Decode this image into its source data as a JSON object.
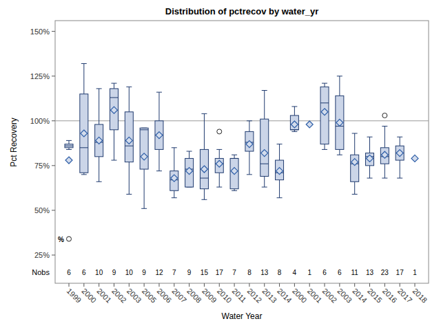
{
  "chart_data": {
    "type": "box",
    "title": "Distribution of pctrecov by water_yr",
    "x_label": "Water Year",
    "y_label": "Pct Recovery",
    "categories": [
      "1999",
      "2000",
      "2001",
      "2002",
      "2003",
      "2005",
      "2006",
      "2007",
      "2008",
      "2009",
      "2010",
      "2011",
      "2012",
      "2013",
      "2014",
      "2000",
      "2001",
      "2002",
      "2003",
      "2014",
      "2015",
      "2016",
      "2017",
      "2018"
    ],
    "whisker_low": [
      84,
      70,
      66,
      78,
      59,
      51,
      72,
      57,
      63,
      56,
      63,
      61,
      70,
      63,
      57,
      94,
      null,
      84,
      81,
      59,
      68,
      68,
      68,
      null
    ],
    "q1": [
      85,
      71,
      80,
      95,
      77,
      73,
      84,
      61,
      63,
      62,
      71,
      62,
      83,
      69,
      67,
      95,
      null,
      87,
      84,
      66,
      75,
      76,
      78,
      null
    ],
    "median": [
      86,
      85,
      88,
      113,
      86,
      95,
      92,
      67,
      73,
      68,
      76,
      79,
      88,
      76,
      71,
      95,
      null,
      110,
      97,
      76,
      80,
      80,
      82,
      null
    ],
    "q3": [
      87,
      115,
      98,
      118,
      105,
      96,
      100,
      72,
      79,
      84,
      79,
      79,
      94,
      101,
      78,
      103,
      null,
      119,
      114,
      81,
      82,
      85,
      86,
      null
    ],
    "whisker_high": [
      89,
      132,
      118,
      121,
      119,
      96,
      116,
      85,
      83,
      104,
      84,
      81,
      100,
      117,
      87,
      108,
      null,
      121,
      125,
      93,
      91,
      97,
      91,
      null
    ],
    "means": [
      78,
      93,
      89,
      106,
      89,
      80,
      92,
      68,
      72,
      73,
      76,
      72,
      87,
      82,
      72,
      98,
      98,
      105,
      99,
      77,
      79,
      81,
      82,
      79
    ],
    "outliers": [
      [
        34
      ],
      [],
      [],
      [],
      [],
      [],
      [],
      [],
      [],
      [],
      [
        94
      ],
      [],
      [],
      [],
      [],
      [],
      [],
      [],
      [],
      [],
      [],
      [
        103
      ],
      [],
      []
    ],
    "nobs_label": "Nobs",
    "nobs": [
      6,
      6,
      10,
      9,
      10,
      9,
      12,
      7,
      9,
      15,
      17,
      7,
      8,
      13,
      8,
      4,
      1,
      6,
      6,
      11,
      13,
      23,
      17,
      1
    ],
    "reference_line": 100,
    "annotations": [
      "%"
    ],
    "color": "#cbd5e8",
    "ylim": [
      20,
      156
    ],
    "yticks": [
      {
        "value": 25,
        "label": "25%"
      },
      {
        "value": 50,
        "label": "50%"
      },
      {
        "value": 75,
        "label": "75%"
      },
      {
        "value": 100,
        "label": "100%"
      },
      {
        "value": 125,
        "label": "125%"
      },
      {
        "value": 150,
        "label": "150%"
      }
    ],
    "grid": false
  }
}
